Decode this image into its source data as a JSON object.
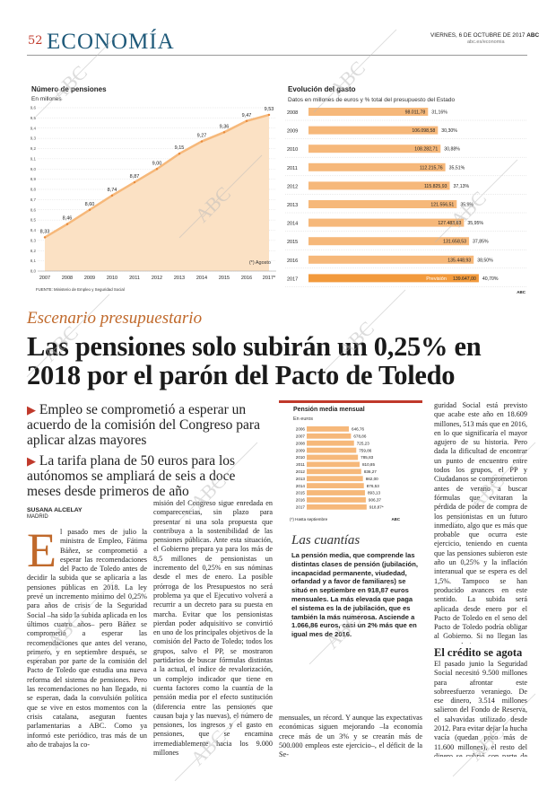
{
  "header": {
    "page_number": "52",
    "section": "ECONOMÍA",
    "date": "VIERNES, 6 DE OCTUBRE DE 2017",
    "brand": "ABC",
    "url": "abc.es/economia"
  },
  "chart_data": [
    {
      "type": "area",
      "title": "Número de pensiones",
      "subtitle": "En millones",
      "categories": [
        "2007",
        "2008",
        "2009",
        "2010",
        "2011",
        "2012",
        "2013",
        "2014",
        "2015",
        "2016",
        "2017*"
      ],
      "values": [
        8.33,
        8.46,
        8.6,
        8.74,
        8.87,
        9.0,
        9.15,
        9.27,
        9.36,
        9.47,
        9.53
      ],
      "value_labels": [
        "8,33",
        "8,46",
        "8,60",
        "8,74",
        "8,87",
        "9,00",
        "9,15",
        "9,27",
        "9,36",
        "9,47",
        "9,53"
      ],
      "ylim": [
        8.0,
        9.6
      ],
      "y_ticks": [
        "8,0",
        "8,1",
        "8,2",
        "8,3",
        "8,4",
        "8,5",
        "8,6",
        "8,7",
        "8,8",
        "8,9",
        "9,0",
        "9,1",
        "9,2",
        "9,3",
        "9,4",
        "9,5",
        "9,6"
      ],
      "note": "(*) Agosto",
      "source": "FUENTE: Ministerio de Empleo y Seguridad Social",
      "color": "#f6b87a"
    },
    {
      "type": "bar",
      "title": "Evolución del gasto",
      "subtitle": "Datos en millones de euros y % total del presupuesto del Estado",
      "categories": [
        "2008",
        "2009",
        "2010",
        "2011",
        "2012",
        "2013",
        "2014",
        "2015",
        "2016",
        "2017"
      ],
      "values": [
        98011.78,
        106098.58,
        108282.71,
        112215.76,
        115825.93,
        121556.51,
        127483.83,
        131658.53,
        135448.93,
        139647.0
      ],
      "value_labels": [
        "98.011,78",
        "106.098,58",
        "108.282,71",
        "112.215,76",
        "115.825,93",
        "121.556,51",
        "127.483,83",
        "131.658,53",
        "135.448,93",
        "139.647,00"
      ],
      "percent_labels": [
        "31,16%",
        "30,30%",
        "30,88%",
        "35,51%",
        "37,13%",
        "35,9%",
        "35,95%",
        "37,85%",
        "38,50%",
        "40,70%"
      ],
      "forecast_label": "Previsión",
      "color": "#f6b87a",
      "highlight_color": "#f29a3c",
      "credit": "ABC"
    },
    {
      "type": "bar",
      "title": "Pensión media mensual",
      "subtitle": "En euros",
      "categories": [
        "2006",
        "2007",
        "2008",
        "2009",
        "2010",
        "2011",
        "2012",
        "2013",
        "2014",
        "2015",
        "2016",
        "2017"
      ],
      "values": [
        646.76,
        678.86,
        725.23,
        759.86,
        785.83,
        810.85,
        836.27,
        862.0,
        876.53,
        893.13,
        906.37,
        918.87
      ],
      "value_labels": [
        "646,76",
        "678,86",
        "725,23",
        "759,86",
        "785,83",
        "810,85",
        "836,27",
        "862,00",
        "876,53",
        "893,13",
        "906,37",
        "918,87*"
      ],
      "note": "(*) Hasta septiembre",
      "credit": "ABC",
      "color": "#f6b87a"
    }
  ],
  "article": {
    "kicker": "Escenario presupuestario",
    "headline": "Las pensiones solo subirán un 0,25% en 2018 por el parón del Pacto de Toledo",
    "deck": [
      "Empleo se comprometió a esperar un acuerdo de la comisión del Congreso para aplicar alzas mayores",
      "La tarifa plana de 50 euros para los autónomos se ampliará de seis a doce meses desde primeros de año"
    ],
    "byline": "SUSANA ALCELAY",
    "place": "MADRID",
    "dropcap": "E",
    "col1": "l pasado mes de julio la ministra de Empleo, Fátima Báñez, se comprometió a esperar las recomendaciones del Pacto de Toledo antes de decidir la subida que se aplicaría a las pensiones públicas en 2018. La ley prevé un incremento mínimo del 0,25% para años de crisis de la Seguridad Social –ha sido la subida aplicada en los últimos cuatro años– pero Báñez se comprometió a esperar las recomendaciones que antes del verano, primero, y en septiembre después, se esperaban por parte de la comisión del Pacto de Toledo que estudia una nueva reforma del sistema de pensiones. Pero las recomendaciones no han llegado, ni se esperan, dada la convulsión política que se vive en estos momentos con la crisis catalana, aseguran fuentes parlamentarias a ABC. Como ya informó este periódico, tras más de un año de trabajos la co-",
    "col2": "misión del Congreso sigue enredada en comparecencias, sin plazo para presentar ni una sola propuesta que contribuya a la sostenibilidad de las pensiones públicas. Ante esta situación, el Gobierno prepara ya para los más de 8,5 millones de pensionistas un incremento del 0,25% en sus nóminas desde el mes de enero. La posible prórroga de los Presupuestos no será problema ya que el Ejecutivo volverá a recurrir a un decreto para su puesta en marcha. Evitar que los pensionistas pierdan poder adquisitivo se convirtió en uno de los principales objetivos de la comisión del Pacto de Toledo; todos los grupos, salvo el PP, se mostraron partidarios de buscar fórmulas distintas a la actual, el índice de revalorización, un complejo indicador que tiene en cuenta factores como la cuantía de la pensión media por el efecto sustitución (diferencia entre las pensiones que causan baja y las nuevas), el número de pensiones, los ingresos y el gasto en pensiones, que se encamina irremediablemente hacia los 9.000 millones",
    "col3_bottom": "mensuales, un récord. Y aunque las expectativas económicas siguen mejorando –la economía crece más de un 3% y se crearán más de 500.000 empleos este ejercicio–, el déficit de la Se-",
    "col4": "guridad Social está previsto que acabe este año en 18.609 millones, 513 más que en 2016, en lo que significaría el mayor agujero de su historia. Pero dada la dificultad de encontrar un punto de encuentro entre todos los grupos, el PP y Ciudadanos se comprometieron antes de verano a buscar fórmulas que evitaran la pérdida de poder de compra de los pensionistas en un futuro inmediato, algo que es más que probable que ocurra este ejercicio, teniendo en cuenta que las pensiones subieron este año un 0,25% y la inflación interanual que se espera es del 1,5%. Tampoco se han producido avances en este sentido. La subida será aplicada desde enero por el Pacto de Toledo en el seno del Pacto de Toledo podría obligar al Gobierno. Si no llegan las recomendaciones, a tomar también una decisión sobre los fondos externos necesarios para pagar las pensiones, dado que las cotizaciones siguen sin aportar lo suficiente a las arcas de la Seguridad Social, sobre todo cuando llega el momento de repartir las pagas extraordinarias de verano y Navidad entre los jubilados.",
    "col4_subhead": "El crédito se agota",
    "col4_b": "El pasado junio la Seguridad Social necesitó 9.500 millones para afrontar este sobreesfuerzo veraniego. De ese dinero, 3.514 millones salieron del Fondo de Reserva, el salvavidas utilizado desde 2012. Para evitar dejar la hucha vacía (quedan poco más de 11.600 millones), el resto del dinero se cubrió con parte de un crédito concedido a la",
    "box_head": "Las cuantías",
    "box_text": "La pensión media, que comprende las distintas clases de pensión (jubilación, incapacidad permanente, viudedad, orfandad y a favor de familiares) se situó en septiembre en 918,87 euros mensuales. La más elevada que paga el sistema es la de jubilación, que es también la más numerosa. Asciende a 1.066,86 euros, casi un 2% más que en igual mes de 2016."
  },
  "watermark": "ABC"
}
